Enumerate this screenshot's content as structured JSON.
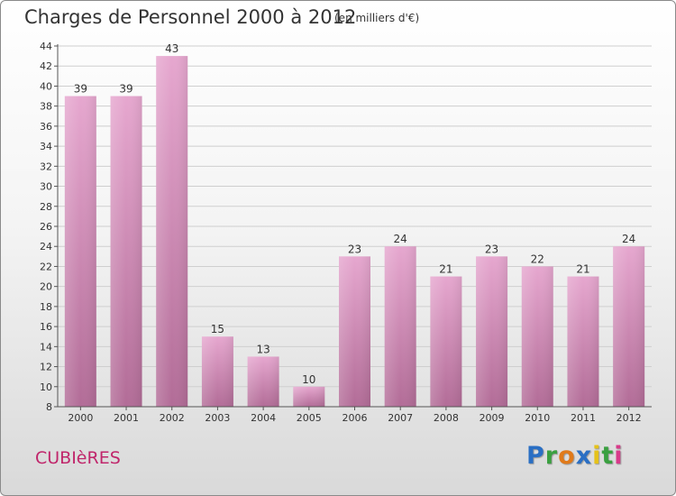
{
  "header": {
    "title": "Charges de Personnel 2000 à 2012",
    "subtitle": "(en milliers d'€)"
  },
  "footer": {
    "commune": "CUBIèRES",
    "logo": [
      "P",
      "r",
      "o",
      "x",
      "i",
      "t",
      "i"
    ]
  },
  "colors": {
    "bar_top": "#e6a7cf",
    "bar_bottom": "#b26c97",
    "grid": "#cfcfcf",
    "axis": "#555555",
    "commune_text": "#c0266b"
  },
  "chart_data": {
    "type": "bar",
    "title": "Charges de Personnel 2000 à 2012",
    "subtitle": "(en milliers d'€)",
    "categories": [
      "2000",
      "2001",
      "2002",
      "2003",
      "2004",
      "2005",
      "2006",
      "2007",
      "2008",
      "2009",
      "2010",
      "2011",
      "2012"
    ],
    "values": [
      39,
      39,
      43,
      15,
      13,
      10,
      23,
      24,
      21,
      23,
      22,
      21,
      24
    ],
    "ylim": [
      8,
      44
    ],
    "yticks": [
      8,
      10,
      12,
      14,
      16,
      18,
      20,
      22,
      24,
      26,
      28,
      30,
      32,
      34,
      36,
      38,
      40,
      42,
      44
    ],
    "grid": true,
    "data_labels": true
  }
}
